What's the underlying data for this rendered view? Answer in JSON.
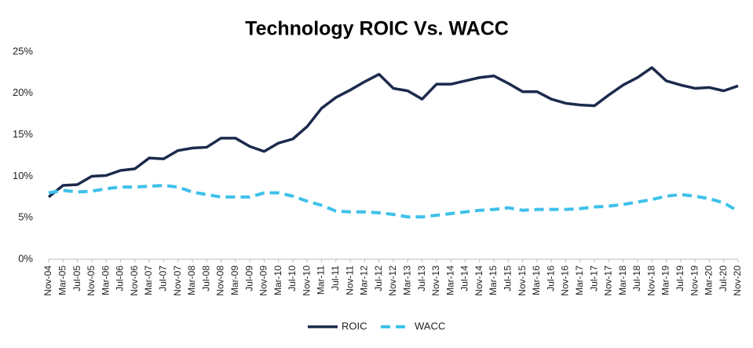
{
  "chart_data": {
    "type": "line",
    "title": "Technology ROIC Vs. WACC",
    "categories": [
      "Nov-04",
      "Mar-05",
      "Jul-05",
      "Nov-05",
      "Mar-06",
      "Jul-06",
      "Nov-06",
      "Mar-07",
      "Jul-07",
      "Nov-07",
      "Mar-08",
      "Jul-08",
      "Nov-08",
      "Mar-09",
      "Jul-09",
      "Nov-09",
      "Mar-10",
      "Jul-10",
      "Nov-10",
      "Mar-11",
      "Jul-11",
      "Nov-11",
      "Mar-12",
      "Jul-12",
      "Nov-12",
      "Mar-13",
      "Jul-13",
      "Nov-13",
      "Mar-14",
      "Jul-14",
      "Nov-14",
      "Mar-15",
      "Jul-15",
      "Nov-15",
      "Mar-16",
      "Jul-16",
      "Nov-16",
      "Mar-17",
      "Jul-17",
      "Nov-17",
      "Mar-18",
      "Jul-18",
      "Nov-18",
      "Mar-19",
      "Jul-19",
      "Nov-19",
      "Mar-20",
      "Jul-20",
      "Nov-20"
    ],
    "series": [
      {
        "name": "ROIC",
        "color": "#1c2a4d",
        "dashed": false,
        "values": [
          7.5,
          8.9,
          9.0,
          10.0,
          10.1,
          10.7,
          10.9,
          12.2,
          12.1,
          13.1,
          13.4,
          13.5,
          14.6,
          14.6,
          13.6,
          13.0,
          14.0,
          14.5,
          16.0,
          18.2,
          19.5,
          20.4,
          21.4,
          22.3,
          20.6,
          20.3,
          19.3,
          21.1,
          21.1,
          21.5,
          21.9,
          22.1,
          21.2,
          20.2,
          20.2,
          19.3,
          18.8,
          18.6,
          18.5,
          19.8,
          21.0,
          21.9,
          23.1,
          21.5,
          21.0,
          20.6,
          20.7,
          20.3,
          20.9
        ]
      },
      {
        "name": "WACC",
        "color": "#3ec0ea",
        "dashed": true,
        "values": [
          8.0,
          8.3,
          8.1,
          8.2,
          8.5,
          8.7,
          8.7,
          8.8,
          8.9,
          8.7,
          8.1,
          7.8,
          7.5,
          7.5,
          7.5,
          8.0,
          8.0,
          7.6,
          7.0,
          6.5,
          5.8,
          5.7,
          5.7,
          5.6,
          5.4,
          5.1,
          5.1,
          5.3,
          5.5,
          5.7,
          5.9,
          6.0,
          6.2,
          5.9,
          6.0,
          6.0,
          6.0,
          6.1,
          6.3,
          6.4,
          6.6,
          6.9,
          7.2,
          7.6,
          7.8,
          7.6,
          7.3,
          6.8,
          5.8
        ]
      }
    ],
    "ylim": [
      0,
      25
    ],
    "yticks": [
      {
        "value": 0,
        "label": "0%"
      },
      {
        "value": 5,
        "label": "5%"
      },
      {
        "value": 10,
        "label": "10%"
      },
      {
        "value": 15,
        "label": "15%"
      },
      {
        "value": 20,
        "label": "20%"
      },
      {
        "value": 25,
        "label": "25%"
      }
    ],
    "grid": false,
    "legend": "bottom"
  }
}
